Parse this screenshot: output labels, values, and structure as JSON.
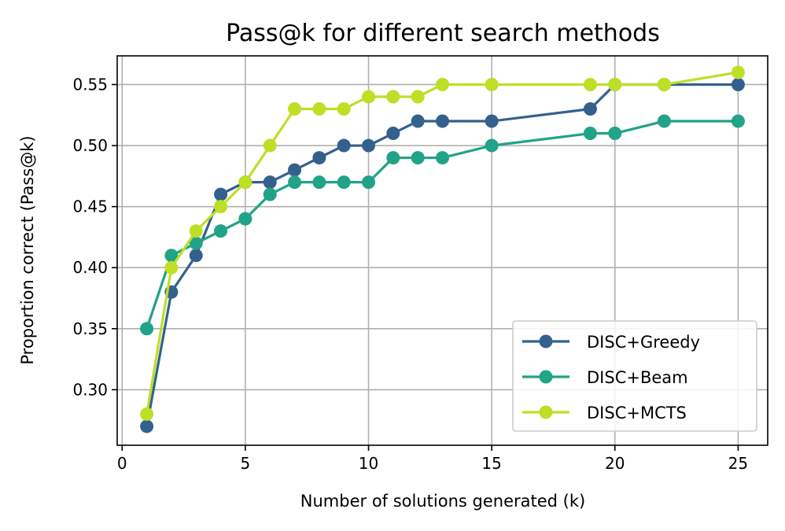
{
  "chart_data": {
    "type": "line",
    "title": "Pass@k for different search methods",
    "xlabel": "Number of solutions generated (k)",
    "ylabel": "Proportion correct (Pass@k)",
    "xlim": [
      -0.2,
      26.2
    ],
    "ylim": [
      0.2545,
      0.5735
    ],
    "xticks": [
      0,
      5,
      10,
      15,
      20,
      25
    ],
    "xtick_labels": [
      "0",
      "5",
      "10",
      "15",
      "20",
      "25"
    ],
    "yticks": [
      0.3,
      0.35,
      0.4,
      0.45,
      0.5,
      0.55
    ],
    "ytick_labels": [
      "0.30",
      "0.35",
      "0.40",
      "0.45",
      "0.50",
      "0.55"
    ],
    "grid": true,
    "legend_position": "lower-right",
    "series": [
      {
        "name": "DISC+Greedy",
        "color": "#34608d",
        "x": [
          1,
          2,
          3,
          4,
          5,
          6,
          7,
          8,
          9,
          10,
          11,
          12,
          13,
          15,
          19,
          20,
          22,
          25
        ],
        "y": [
          0.27,
          0.38,
          0.41,
          0.46,
          0.47,
          0.47,
          0.48,
          0.49,
          0.5,
          0.5,
          0.51,
          0.52,
          0.52,
          0.52,
          0.53,
          0.55,
          0.55,
          0.55
        ]
      },
      {
        "name": "DISC+Beam",
        "color": "#20a386",
        "x": [
          1,
          2,
          3,
          4,
          5,
          6,
          7,
          8,
          9,
          10,
          11,
          12,
          13,
          15,
          19,
          20,
          22,
          25
        ],
        "y": [
          0.35,
          0.41,
          0.42,
          0.43,
          0.44,
          0.46,
          0.47,
          0.47,
          0.47,
          0.47,
          0.49,
          0.49,
          0.49,
          0.5,
          0.51,
          0.51,
          0.52,
          0.52
        ]
      },
      {
        "name": "DISC+MCTS",
        "color": "#bddf26",
        "x": [
          1,
          2,
          3,
          4,
          5,
          6,
          7,
          8,
          9,
          10,
          11,
          12,
          13,
          15,
          19,
          20,
          22,
          25
        ],
        "y": [
          0.28,
          0.4,
          0.43,
          0.45,
          0.47,
          0.5,
          0.53,
          0.53,
          0.53,
          0.54,
          0.54,
          0.54,
          0.55,
          0.55,
          0.55,
          0.55,
          0.55,
          0.56
        ]
      }
    ]
  }
}
